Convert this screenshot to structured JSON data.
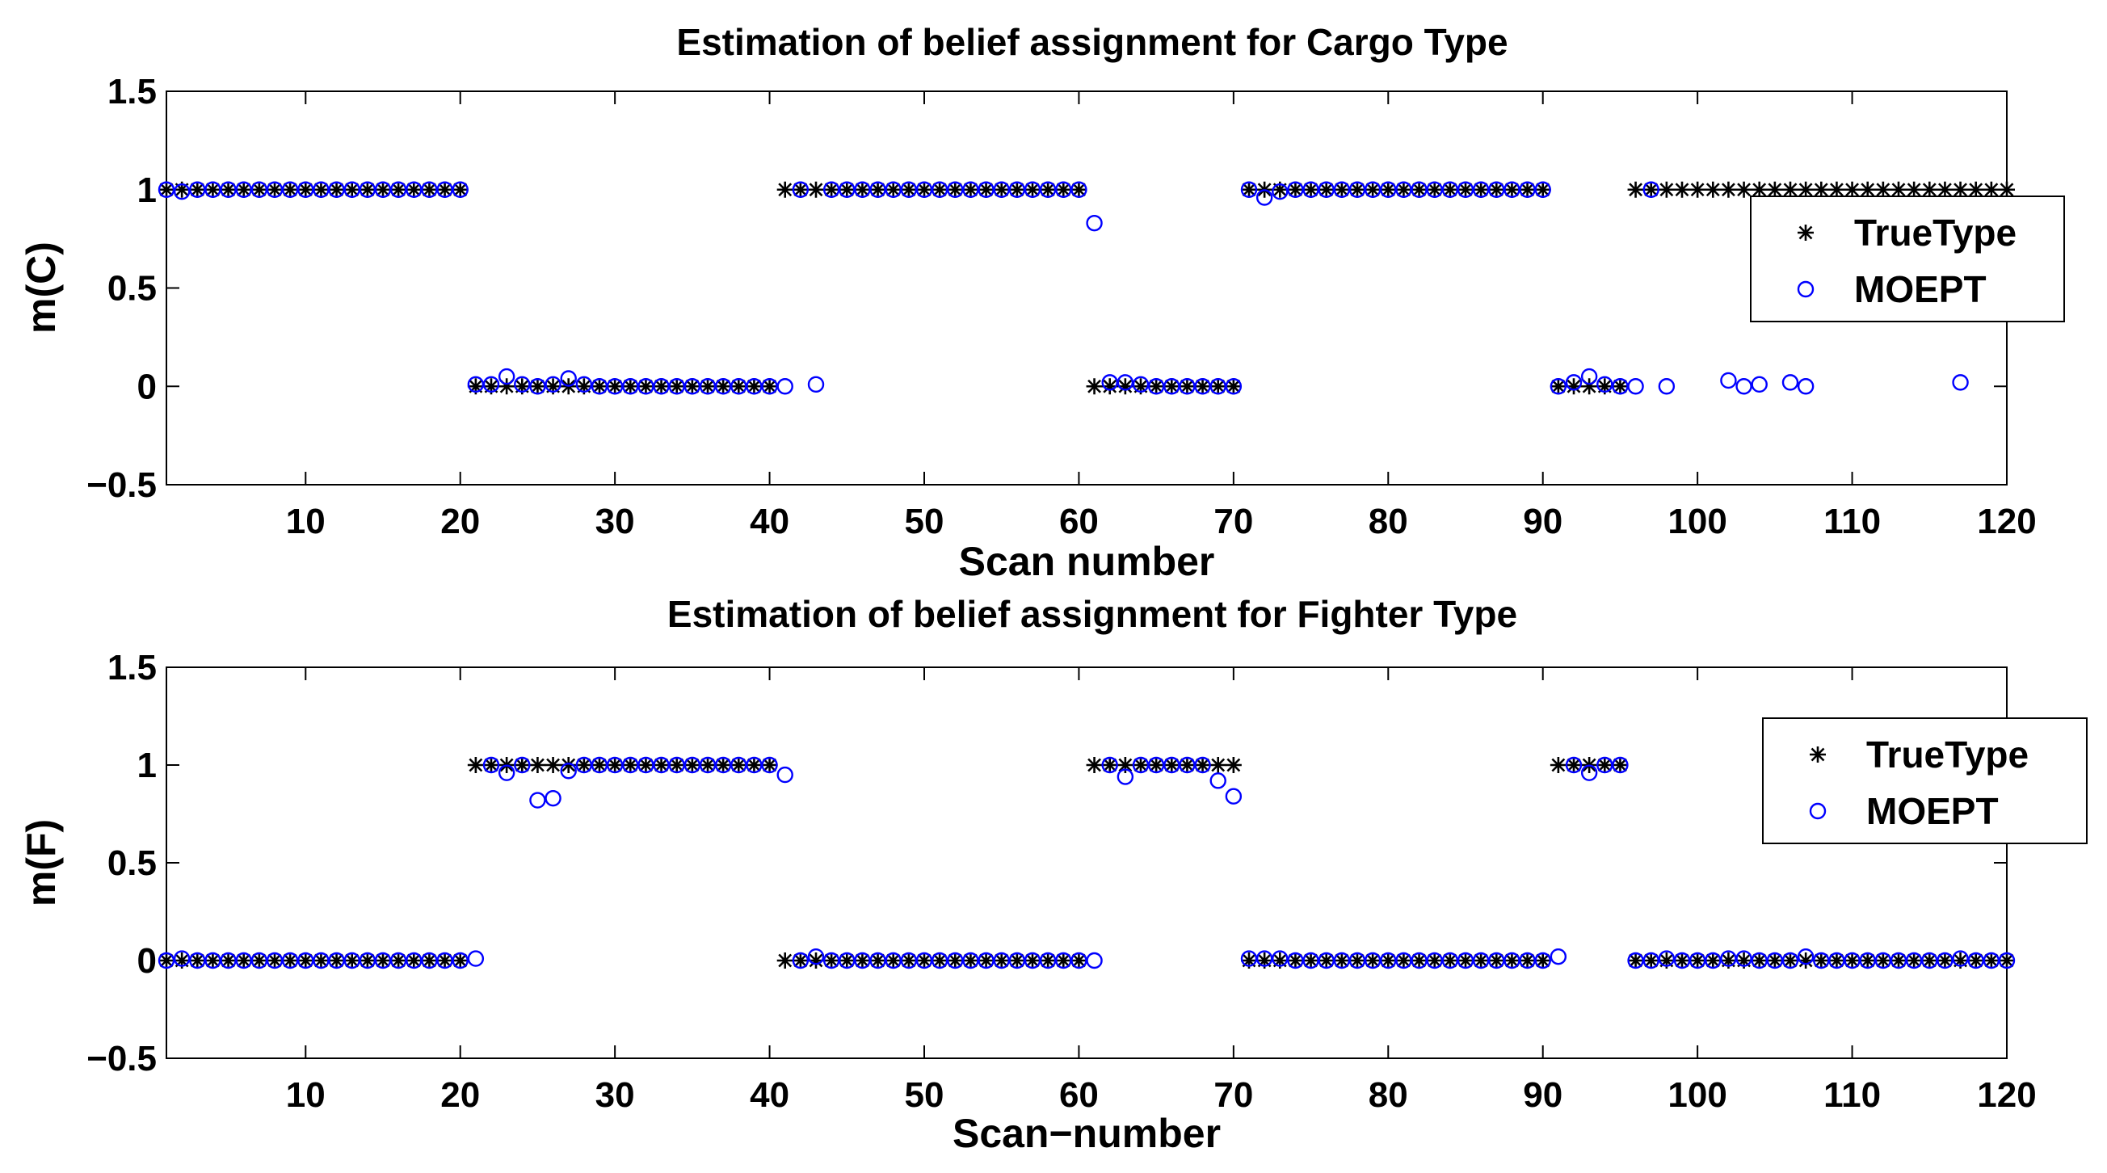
{
  "chart_data": [
    {
      "type": "scatter",
      "title": "Estimation of belief assignment for Cargo Type",
      "xlabel": "Scan number",
      "ylabel": "m(C)",
      "xlim": [
        1,
        120
      ],
      "ylim": [
        -0.5,
        1.5
      ],
      "xticks": [
        10,
        20,
        30,
        40,
        50,
        60,
        70,
        80,
        90,
        100,
        110,
        120
      ],
      "yticks": [
        -0.5,
        0,
        0.5,
        1,
        1.5
      ],
      "xtick_labels": [
        "10",
        "20",
        "30",
        "40",
        "50",
        "60",
        "70",
        "80",
        "90",
        "100",
        "110",
        "120"
      ],
      "ytick_labels": [
        "−0.5",
        "0",
        "0.5",
        "1",
        "1.5"
      ],
      "legend": {
        "position": "upper-right",
        "entries": [
          "TrueType",
          "MOEPT"
        ]
      },
      "series": [
        {
          "name": "TrueType",
          "marker": "asterisk",
          "color": "#000000",
          "x": [
            1,
            2,
            3,
            4,
            5,
            6,
            7,
            8,
            9,
            10,
            11,
            12,
            13,
            14,
            15,
            16,
            17,
            18,
            19,
            20,
            21,
            22,
            23,
            24,
            25,
            26,
            27,
            28,
            29,
            30,
            31,
            32,
            33,
            34,
            35,
            36,
            37,
            38,
            39,
            40,
            41,
            42,
            43,
            44,
            45,
            46,
            47,
            48,
            49,
            50,
            51,
            52,
            53,
            54,
            55,
            56,
            57,
            58,
            59,
            60,
            61,
            62,
            63,
            64,
            65,
            66,
            67,
            68,
            69,
            70,
            71,
            72,
            73,
            74,
            75,
            76,
            77,
            78,
            79,
            80,
            81,
            82,
            83,
            84,
            85,
            86,
            87,
            88,
            89,
            90,
            91,
            92,
            93,
            94,
            95,
            96,
            97,
            98,
            99,
            100,
            101,
            102,
            103,
            104,
            105,
            106,
            107,
            108,
            109,
            110,
            111,
            112,
            113,
            114,
            115,
            116,
            117,
            118,
            119,
            120
          ],
          "y": [
            1,
            1,
            1,
            1,
            1,
            1,
            1,
            1,
            1,
            1,
            1,
            1,
            1,
            1,
            1,
            1,
            1,
            1,
            1,
            1,
            0,
            0,
            0,
            0,
            0,
            0,
            0,
            0,
            0,
            0,
            0,
            0,
            0,
            0,
            0,
            0,
            0,
            0,
            0,
            0,
            1,
            1,
            1,
            1,
            1,
            1,
            1,
            1,
            1,
            1,
            1,
            1,
            1,
            1,
            1,
            1,
            1,
            1,
            1,
            1,
            0,
            0,
            0,
            0,
            0,
            0,
            0,
            0,
            0,
            0,
            1,
            1,
            1,
            1,
            1,
            1,
            1,
            1,
            1,
            1,
            1,
            1,
            1,
            1,
            1,
            1,
            1,
            1,
            1,
            1,
            0,
            0,
            0,
            0,
            0,
            1,
            1,
            1,
            1,
            1,
            1,
            1,
            1,
            1,
            1,
            1,
            1,
            1,
            1,
            1,
            1,
            1,
            1,
            1,
            1,
            1,
            1,
            1,
            1,
            1
          ]
        },
        {
          "name": "MOEPT",
          "marker": "circle",
          "color": "#0000ff",
          "x": [
            1,
            2,
            3,
            4,
            5,
            6,
            7,
            8,
            9,
            10,
            11,
            12,
            13,
            14,
            15,
            16,
            17,
            18,
            19,
            20,
            21,
            22,
            23,
            24,
            25,
            26,
            27,
            28,
            29,
            30,
            31,
            32,
            33,
            34,
            35,
            36,
            37,
            38,
            39,
            40,
            41,
            42,
            43,
            44,
            45,
            46,
            47,
            48,
            49,
            50,
            51,
            52,
            53,
            54,
            55,
            56,
            57,
            58,
            59,
            60,
            61,
            62,
            63,
            64,
            65,
            66,
            67,
            68,
            69,
            70,
            71,
            72,
            73,
            74,
            75,
            76,
            77,
            78,
            79,
            80,
            81,
            82,
            83,
            84,
            85,
            86,
            87,
            88,
            89,
            90,
            91,
            92,
            93,
            94,
            95,
            96,
            97,
            98,
            102,
            103,
            104,
            106,
            107,
            117
          ],
          "y": [
            1,
            0.99,
            1,
            1,
            1,
            1,
            1,
            1,
            1,
            1,
            1,
            1,
            1,
            1,
            1,
            1,
            1,
            1,
            1,
            1,
            0.01,
            0.01,
            0.05,
            0.01,
            0,
            0.01,
            0.04,
            0.01,
            0,
            0,
            0,
            0,
            0,
            0,
            0,
            0,
            0,
            0,
            0,
            0,
            0,
            1,
            0.01,
            1,
            1,
            1,
            1,
            1,
            1,
            1,
            1,
            1,
            1,
            1,
            1,
            1,
            1,
            1,
            1,
            1,
            0.83,
            0.02,
            0.02,
            0.01,
            0,
            0,
            0,
            0,
            0,
            0,
            1,
            0.96,
            0.99,
            1,
            1,
            1,
            1,
            1,
            1,
            1,
            1,
            1,
            1,
            1,
            1,
            1,
            1,
            1,
            1,
            1,
            0,
            0.02,
            0.05,
            0.01,
            0,
            0,
            1,
            0,
            0.03,
            0,
            0.01,
            0.02,
            0,
            0.02
          ]
        }
      ]
    },
    {
      "type": "scatter",
      "title": "Estimation of belief assignment for Fighter Type",
      "xlabel": "Scan−number",
      "ylabel": "m(F)",
      "xlim": [
        1,
        120
      ],
      "ylim": [
        -0.5,
        1.5
      ],
      "xticks": [
        10,
        20,
        30,
        40,
        50,
        60,
        70,
        80,
        90,
        100,
        110,
        120
      ],
      "yticks": [
        -0.5,
        0,
        0.5,
        1,
        1.5
      ],
      "xtick_labels": [
        "10",
        "20",
        "30",
        "40",
        "50",
        "60",
        "70",
        "80",
        "90",
        "100",
        "110",
        "120"
      ],
      "ytick_labels": [
        "−0.5",
        "0",
        "0.5",
        "1",
        "1.5"
      ],
      "legend": {
        "position": "upper-right",
        "entries": [
          "TrueType",
          "MOEPT"
        ]
      },
      "series": [
        {
          "name": "TrueType",
          "marker": "asterisk",
          "color": "#000000",
          "x": [
            1,
            2,
            3,
            4,
            5,
            6,
            7,
            8,
            9,
            10,
            11,
            12,
            13,
            14,
            15,
            16,
            17,
            18,
            19,
            20,
            21,
            22,
            23,
            24,
            25,
            26,
            27,
            28,
            29,
            30,
            31,
            32,
            33,
            34,
            35,
            36,
            37,
            38,
            39,
            40,
            41,
            42,
            43,
            44,
            45,
            46,
            47,
            48,
            49,
            50,
            51,
            52,
            53,
            54,
            55,
            56,
            57,
            58,
            59,
            60,
            61,
            62,
            63,
            64,
            65,
            66,
            67,
            68,
            69,
            70,
            71,
            72,
            73,
            74,
            75,
            76,
            77,
            78,
            79,
            80,
            81,
            82,
            83,
            84,
            85,
            86,
            87,
            88,
            89,
            90,
            91,
            92,
            93,
            94,
            95,
            96,
            97,
            98,
            99,
            100,
            101,
            102,
            103,
            104,
            105,
            106,
            107,
            108,
            109,
            110,
            111,
            112,
            113,
            114,
            115,
            116,
            117,
            118,
            119,
            120
          ],
          "y": [
            0,
            0,
            0,
            0,
            0,
            0,
            0,
            0,
            0,
            0,
            0,
            0,
            0,
            0,
            0,
            0,
            0,
            0,
            0,
            0,
            1,
            1,
            1,
            1,
            1,
            1,
            1,
            1,
            1,
            1,
            1,
            1,
            1,
            1,
            1,
            1,
            1,
            1,
            1,
            1,
            0,
            0,
            0,
            0,
            0,
            0,
            0,
            0,
            0,
            0,
            0,
            0,
            0,
            0,
            0,
            0,
            0,
            0,
            0,
            0,
            1,
            1,
            1,
            1,
            1,
            1,
            1,
            1,
            1,
            1,
            0,
            0,
            0,
            0,
            0,
            0,
            0,
            0,
            0,
            0,
            0,
            0,
            0,
            0,
            0,
            0,
            0,
            0,
            0,
            0,
            1,
            1,
            1,
            1,
            1,
            0,
            0,
            0,
            0,
            0,
            0,
            0,
            0,
            0,
            0,
            0,
            0,
            0,
            0,
            0,
            0,
            0,
            0,
            0,
            0,
            0,
            0,
            0,
            0,
            0
          ]
        },
        {
          "name": "MOEPT",
          "marker": "circle",
          "color": "#0000ff",
          "x": [
            1,
            2,
            3,
            4,
            5,
            6,
            7,
            8,
            9,
            10,
            11,
            12,
            13,
            14,
            15,
            16,
            17,
            18,
            19,
            20,
            21,
            22,
            23,
            24,
            25,
            26,
            27,
            28,
            29,
            30,
            31,
            32,
            33,
            34,
            35,
            36,
            37,
            38,
            39,
            40,
            41,
            42,
            43,
            44,
            45,
            46,
            47,
            48,
            49,
            50,
            51,
            52,
            53,
            54,
            55,
            56,
            57,
            58,
            59,
            60,
            61,
            62,
            63,
            64,
            65,
            66,
            67,
            68,
            69,
            70,
            71,
            72,
            73,
            74,
            75,
            76,
            77,
            78,
            79,
            80,
            81,
            82,
            83,
            84,
            85,
            86,
            87,
            88,
            89,
            90,
            91,
            92,
            93,
            94,
            95,
            96,
            97,
            98,
            99,
            100,
            101,
            102,
            103,
            104,
            105,
            106,
            107,
            108,
            109,
            110,
            111,
            112,
            113,
            114,
            115,
            116,
            117,
            118,
            119,
            120
          ],
          "y": [
            0,
            0.01,
            0,
            0,
            0,
            0,
            0,
            0,
            0,
            0,
            0,
            0,
            0,
            0,
            0,
            0,
            0,
            0,
            0,
            0,
            0.01,
            1,
            0.96,
            1,
            0.82,
            0.83,
            0.97,
            1,
            1,
            1,
            1,
            1,
            1,
            1,
            1,
            1,
            1,
            1,
            1,
            1,
            0.95,
            0,
            0.02,
            0,
            0,
            0,
            0,
            0,
            0,
            0,
            0,
            0,
            0,
            0,
            0,
            0,
            0,
            0,
            0,
            0,
            0,
            1,
            0.94,
            1,
            1,
            1,
            1,
            1,
            0.92,
            0.84,
            0.01,
            0.01,
            0.01,
            0,
            0,
            0,
            0,
            0,
            0,
            0,
            0,
            0,
            0,
            0,
            0,
            0,
            0,
            0,
            0,
            0,
            0.02,
            1,
            0.96,
            1,
            1,
            0,
            0,
            0.01,
            0,
            0,
            0,
            0.01,
            0.01,
            0,
            0,
            0,
            0.02,
            0,
            0,
            0,
            0,
            0,
            0,
            0,
            0,
            0,
            0.01,
            0,
            0,
            0
          ]
        }
      ]
    }
  ]
}
